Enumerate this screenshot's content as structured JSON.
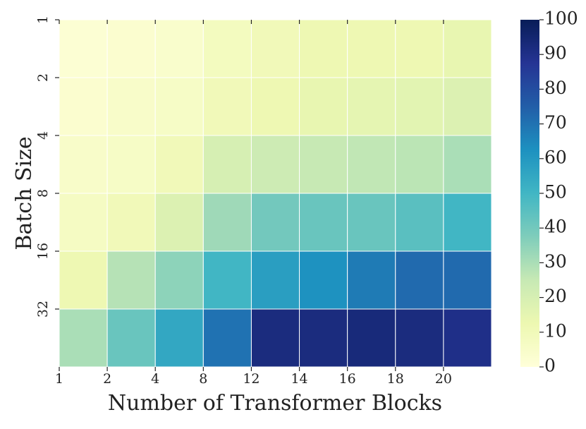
{
  "chart_data": {
    "type": "heatmap",
    "xlabel": "Number of Transformer Blocks",
    "ylabel": "Batch Size",
    "x_categories": [
      "1",
      "2",
      "4",
      "8",
      "12",
      "14",
      "16",
      "18",
      "20"
    ],
    "y_categories": [
      "1",
      "2",
      "4",
      "8",
      "16",
      "32"
    ],
    "values": [
      [
        2,
        3,
        4,
        8,
        10,
        12,
        12,
        12,
        14
      ],
      [
        3,
        5,
        6,
        10,
        12,
        14,
        15,
        16,
        18
      ],
      [
        5,
        6,
        10,
        20,
        23,
        25,
        26,
        27,
        30
      ],
      [
        7,
        10,
        18,
        32,
        40,
        42,
        42,
        45,
        50
      ],
      [
        12,
        28,
        35,
        50,
        58,
        62,
        68,
        72,
        72
      ],
      [
        30,
        42,
        55,
        70,
        92,
        92,
        93,
        92,
        90
      ]
    ],
    "colormap": "YlGnBu",
    "clim": [
      0,
      100
    ],
    "cticks": [
      0,
      10,
      20,
      30,
      40,
      50,
      60,
      70,
      80,
      90,
      100
    ]
  }
}
